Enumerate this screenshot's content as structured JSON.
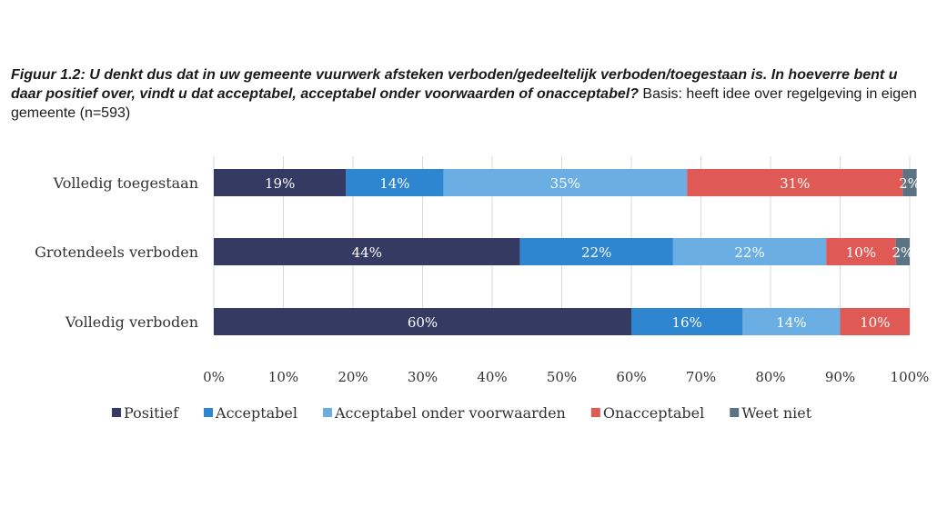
{
  "caption": {
    "bold_text": "Figuur 1.2: U denkt dus dat in uw gemeente vuurwerk afsteken verboden/gedeeltelijk verboden/toegestaan is. In hoeverre bent u daar positief over, vindt u dat acceptabel, acceptabel onder voorwaarden of onacceptabel?",
    "normal_text": " Basis: heeft idee over regelgeving in eigen gemeente (n=593)"
  },
  "chart_data": {
    "type": "bar",
    "orientation": "horizontal",
    "stacked": "percent",
    "categories": [
      "Volledig toegestaan",
      "Grotendeels verboden",
      "Volledig verboden"
    ],
    "series": [
      {
        "name": "Positief",
        "color": "#353a62",
        "values": [
          19,
          44,
          60
        ],
        "labels": [
          "19%",
          "44%",
          "60%"
        ]
      },
      {
        "name": "Acceptabel",
        "color": "#2e86d1",
        "values": [
          14,
          22,
          16
        ],
        "labels": [
          "14%",
          "22%",
          "16%"
        ]
      },
      {
        "name": "Acceptabel onder voorwaarden",
        "color": "#6aaee3",
        "values": [
          35,
          22,
          14
        ],
        "labels": [
          "35%",
          "22%",
          "14%"
        ]
      },
      {
        "name": "Onacceptabel",
        "color": "#e05a55",
        "values": [
          31,
          10,
          10
        ],
        "labels": [
          "31%",
          "10%",
          "10%"
        ]
      },
      {
        "name": "Weet niet",
        "color": "#5c7383",
        "values": [
          2,
          2,
          0
        ],
        "labels": [
          "2%",
          "2%",
          ""
        ]
      }
    ],
    "x_ticks": [
      "0%",
      "10%",
      "20%",
      "30%",
      "40%",
      "50%",
      "60%",
      "70%",
      "80%",
      "90%",
      "100%"
    ],
    "xlim": [
      0,
      100
    ],
    "grid": "vertical",
    "legend_position": "bottom"
  }
}
